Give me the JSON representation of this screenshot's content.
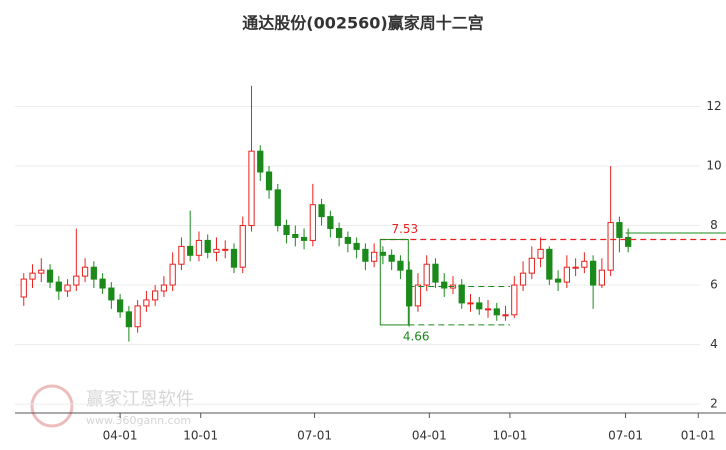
{
  "chart_data": {
    "type": "candlestick",
    "title": "通达股份(002560)赢家周十二宫",
    "watermark": {
      "name": "赢家江恩软件",
      "url": "www.360gann.com"
    },
    "open": [
      5.6,
      6.2,
      6.4,
      6.5,
      6.1,
      5.8,
      6.0,
      6.3,
      6.6,
      6.2,
      5.9,
      5.5,
      5.1,
      4.6,
      5.3,
      5.5,
      5.8,
      6.0,
      6.7,
      7.3,
      7.0,
      7.5,
      7.1,
      7.2,
      7.2,
      6.6,
      8.0,
      10.5,
      9.8,
      9.2,
      8.0,
      7.7,
      7.6,
      7.5,
      8.7,
      8.3,
      7.9,
      7.6,
      7.4,
      7.2,
      6.8,
      7.1,
      7.0,
      6.8,
      6.5,
      5.3,
      6.0,
      6.7,
      6.1,
      5.9,
      6.0,
      5.4,
      5.4,
      5.2,
      5.2,
      5.0,
      5.0,
      6.0,
      6.4,
      6.9,
      7.2,
      6.2,
      6.1,
      6.6,
      6.6,
      6.8,
      6.0,
      6.5,
      8.1,
      7.6
    ],
    "close": [
      6.2,
      6.4,
      6.5,
      6.1,
      5.8,
      6.0,
      6.3,
      6.6,
      6.2,
      5.9,
      5.5,
      5.1,
      4.6,
      5.3,
      5.5,
      5.8,
      6.0,
      6.7,
      7.3,
      7.0,
      7.5,
      7.1,
      7.2,
      7.2,
      6.6,
      8.0,
      10.5,
      9.8,
      9.2,
      8.0,
      7.7,
      7.6,
      7.5,
      8.7,
      8.3,
      7.9,
      7.6,
      7.4,
      7.2,
      6.8,
      7.1,
      7.0,
      6.8,
      6.5,
      5.3,
      6.0,
      6.7,
      6.1,
      5.9,
      6.0,
      5.4,
      5.4,
      5.2,
      5.2,
      5.0,
      5.0,
      6.0,
      6.4,
      6.9,
      7.2,
      6.2,
      6.1,
      6.6,
      6.6,
      6.8,
      6.0,
      6.5,
      8.1,
      7.6,
      7.3
    ],
    "high": [
      6.4,
      6.7,
      6.9,
      6.7,
      6.3,
      6.2,
      7.9,
      6.9,
      6.8,
      6.4,
      6.1,
      5.7,
      5.3,
      5.5,
      5.8,
      6.0,
      6.3,
      7.1,
      7.6,
      8.5,
      7.8,
      7.7,
      7.6,
      7.5,
      7.4,
      8.3,
      12.7,
      10.7,
      10.0,
      9.4,
      8.2,
      8.0,
      7.9,
      9.4,
      8.9,
      8.5,
      8.1,
      7.8,
      7.6,
      7.4,
      7.4,
      7.3,
      7.2,
      7.0,
      6.8,
      6.4,
      7.0,
      6.9,
      6.4,
      6.3,
      6.2,
      5.7,
      5.6,
      5.5,
      5.4,
      5.3,
      6.3,
      6.8,
      7.3,
      7.6,
      7.3,
      6.5,
      7.0,
      6.9,
      7.1,
      7.0,
      6.9,
      10.0,
      8.3,
      7.9
    ],
    "low": [
      5.3,
      5.9,
      6.1,
      5.9,
      5.5,
      5.6,
      5.8,
      6.1,
      5.9,
      5.7,
      5.2,
      4.9,
      4.1,
      4.4,
      5.1,
      5.3,
      5.6,
      5.8,
      6.5,
      6.8,
      6.8,
      6.9,
      6.8,
      6.9,
      6.4,
      6.4,
      7.8,
      9.5,
      8.9,
      7.8,
      7.4,
      7.3,
      7.2,
      7.3,
      8.0,
      7.6,
      7.3,
      7.1,
      6.9,
      6.5,
      6.6,
      6.7,
      6.5,
      6.2,
      4.6,
      5.1,
      5.8,
      5.9,
      5.6,
      5.7,
      5.2,
      5.1,
      5.0,
      4.9,
      4.8,
      4.8,
      4.9,
      5.8,
      6.2,
      6.6,
      6.0,
      5.8,
      5.9,
      6.3,
      6.4,
      5.2,
      5.9,
      6.3,
      7.1,
      7.1
    ],
    "up_color": "#e8221e",
    "down_color": "#1b8a1b",
    "xlim": [
      -1,
      77.2
    ],
    "xticks": [
      {
        "value": 11,
        "label": "04-01"
      },
      {
        "value": 20.2,
        "label": "10-01"
      },
      {
        "value": 33.2,
        "label": "07-01"
      },
      {
        "value": 46.3,
        "label": "04-01"
      },
      {
        "value": 55.5,
        "label": "10-01"
      },
      {
        "value": 68.7,
        "label": "07-01"
      },
      {
        "value": 77,
        "label": "01-01"
      }
    ],
    "ylim": [
      1.7,
      13.9
    ],
    "yticks": [
      2,
      4,
      6,
      8,
      10,
      12
    ],
    "grid": true,
    "levels": {
      "resistance": 7.53,
      "support": 4.66,
      "mid": 5.95,
      "last": 7.75
    }
  }
}
